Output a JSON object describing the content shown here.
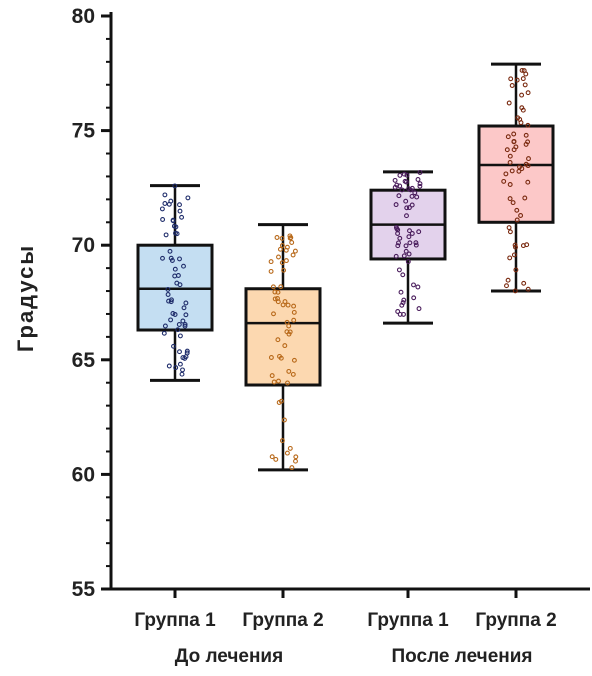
{
  "chart_data": {
    "type": "box",
    "ylabel": "Градусы",
    "xlabel": "",
    "ylim": [
      55,
      80
    ],
    "yticks": [
      55,
      60,
      65,
      70,
      75,
      80
    ],
    "grid": false,
    "groups": [
      {
        "label": "До лечения",
        "categories": [
          "Группа 1",
          "Группа 2"
        ]
      },
      {
        "label": "После лечения",
        "categories": [
          "Группа 1",
          "Группа 2"
        ]
      }
    ],
    "boxes": [
      {
        "group": "До лечения",
        "category": "Группа 1",
        "min": 64.1,
        "q1": 66.3,
        "median": 68.1,
        "q3": 70.0,
        "max": 72.6,
        "fill": "#c4def2",
        "point_color": "#1f2d6b"
      },
      {
        "group": "До лечения",
        "category": "Группа 2",
        "min": 60.2,
        "q1": 63.9,
        "median": 66.6,
        "q3": 68.1,
        "max": 70.9,
        "fill": "#fcd8b0",
        "point_color": "#b8691a"
      },
      {
        "group": "После лечения",
        "category": "Группа 1",
        "min": 66.6,
        "q1": 69.4,
        "median": 70.9,
        "q3": 72.4,
        "max": 73.2,
        "fill": "#e3d2ec",
        "point_color": "#4a1d5c"
      },
      {
        "group": "После лечения",
        "category": "Группа 2",
        "min": 68.0,
        "q1": 71.0,
        "median": 73.5,
        "q3": 75.2,
        "max": 77.9,
        "fill": "#fcc8c8",
        "point_color": "#7a2a10"
      }
    ]
  }
}
